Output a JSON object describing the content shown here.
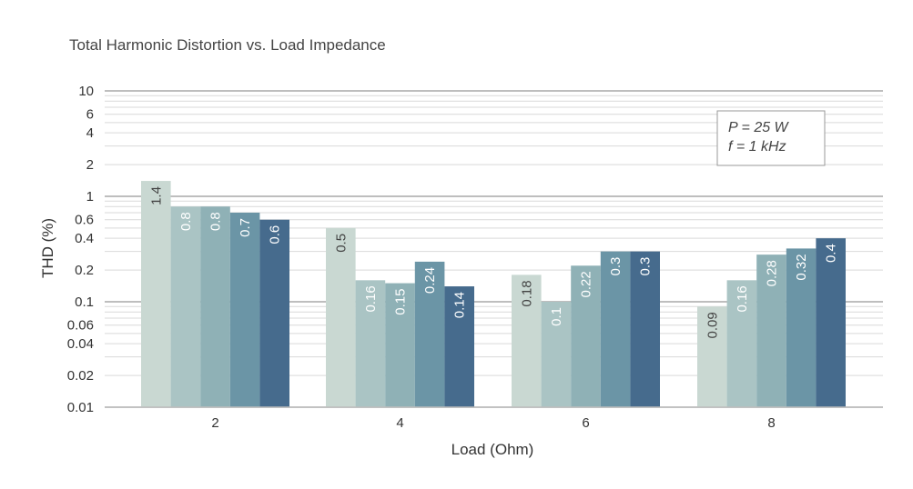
{
  "chart_data": {
    "type": "bar",
    "title": "Total Harmonic Distortion vs. Load Impedance",
    "xlabel": "Load (Ohm)",
    "ylabel": "THD (%)",
    "yscale": "log",
    "ylim": [
      0.01,
      10
    ],
    "ytick_labels": [
      "0.01",
      "0.02",
      "0.04",
      "0.06",
      "0.1",
      "0.2",
      "0.4",
      "0.6",
      "1",
      "2",
      "4",
      "6",
      "10"
    ],
    "categories": [
      "2",
      "4",
      "6",
      "8"
    ],
    "series": [
      {
        "values": [
          1.4,
          0.5,
          0.18,
          0.09
        ],
        "labels": [
          "1.4",
          "0.5",
          "0.18",
          "0.09"
        ],
        "color": "#c9d8d2"
      },
      {
        "values": [
          0.8,
          0.16,
          0.1,
          0.16
        ],
        "labels": [
          "0.8",
          "0.16",
          "0.1",
          "0.16"
        ],
        "color": "#aac4c4"
      },
      {
        "values": [
          0.8,
          0.15,
          0.22,
          0.28
        ],
        "labels": [
          "0.8",
          "0.15",
          "0.22",
          "0.28"
        ],
        "color": "#8fb1b6"
      },
      {
        "values": [
          0.7,
          0.24,
          0.3,
          0.32
        ],
        "labels": [
          "0.7",
          "0.24",
          "0.3",
          "0.32"
        ],
        "color": "#6b95a6"
      },
      {
        "values": [
          0.6,
          0.14,
          0.3,
          0.4
        ],
        "labels": [
          "0.6",
          "0.14",
          "0.3",
          "0.4"
        ],
        "color": "#466b8d"
      }
    ],
    "annotation": [
      "P = 25 W",
      "f = 1 kHz"
    ],
    "annotation_placement": "top-right",
    "grid": true,
    "legend": "none"
  }
}
